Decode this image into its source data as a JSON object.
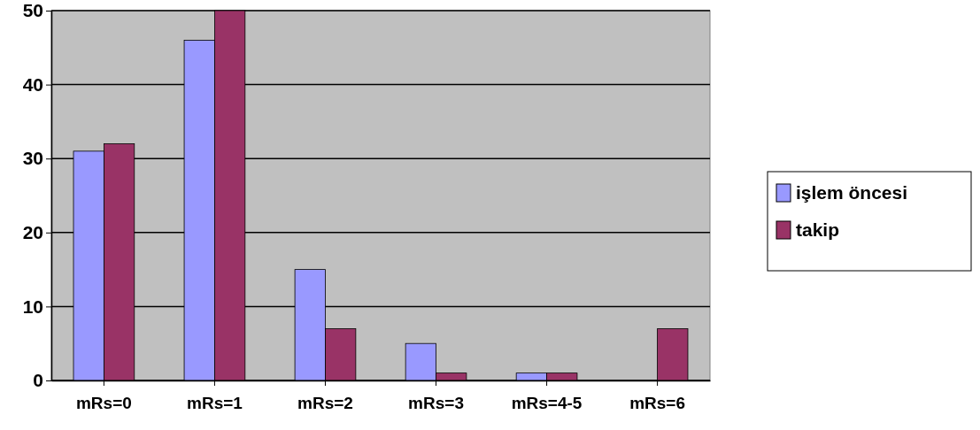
{
  "chart_data": {
    "type": "bar",
    "categories": [
      "mRs=0",
      "mRs=1",
      "mRs=2",
      "mRs=3",
      "mRs=4-5",
      "mRs=6"
    ],
    "series": [
      {
        "name": "işlem öncesi",
        "color": "#9999ff",
        "values": [
          31,
          46,
          15,
          5,
          1,
          0
        ]
      },
      {
        "name": "takip",
        "color": "#993366",
        "values": [
          32,
          50,
          7,
          1,
          1,
          7
        ]
      }
    ],
    "ylim": [
      0,
      50
    ],
    "yticks": [
      0,
      10,
      20,
      30,
      40,
      50
    ],
    "grid": "y",
    "legend": "right"
  }
}
